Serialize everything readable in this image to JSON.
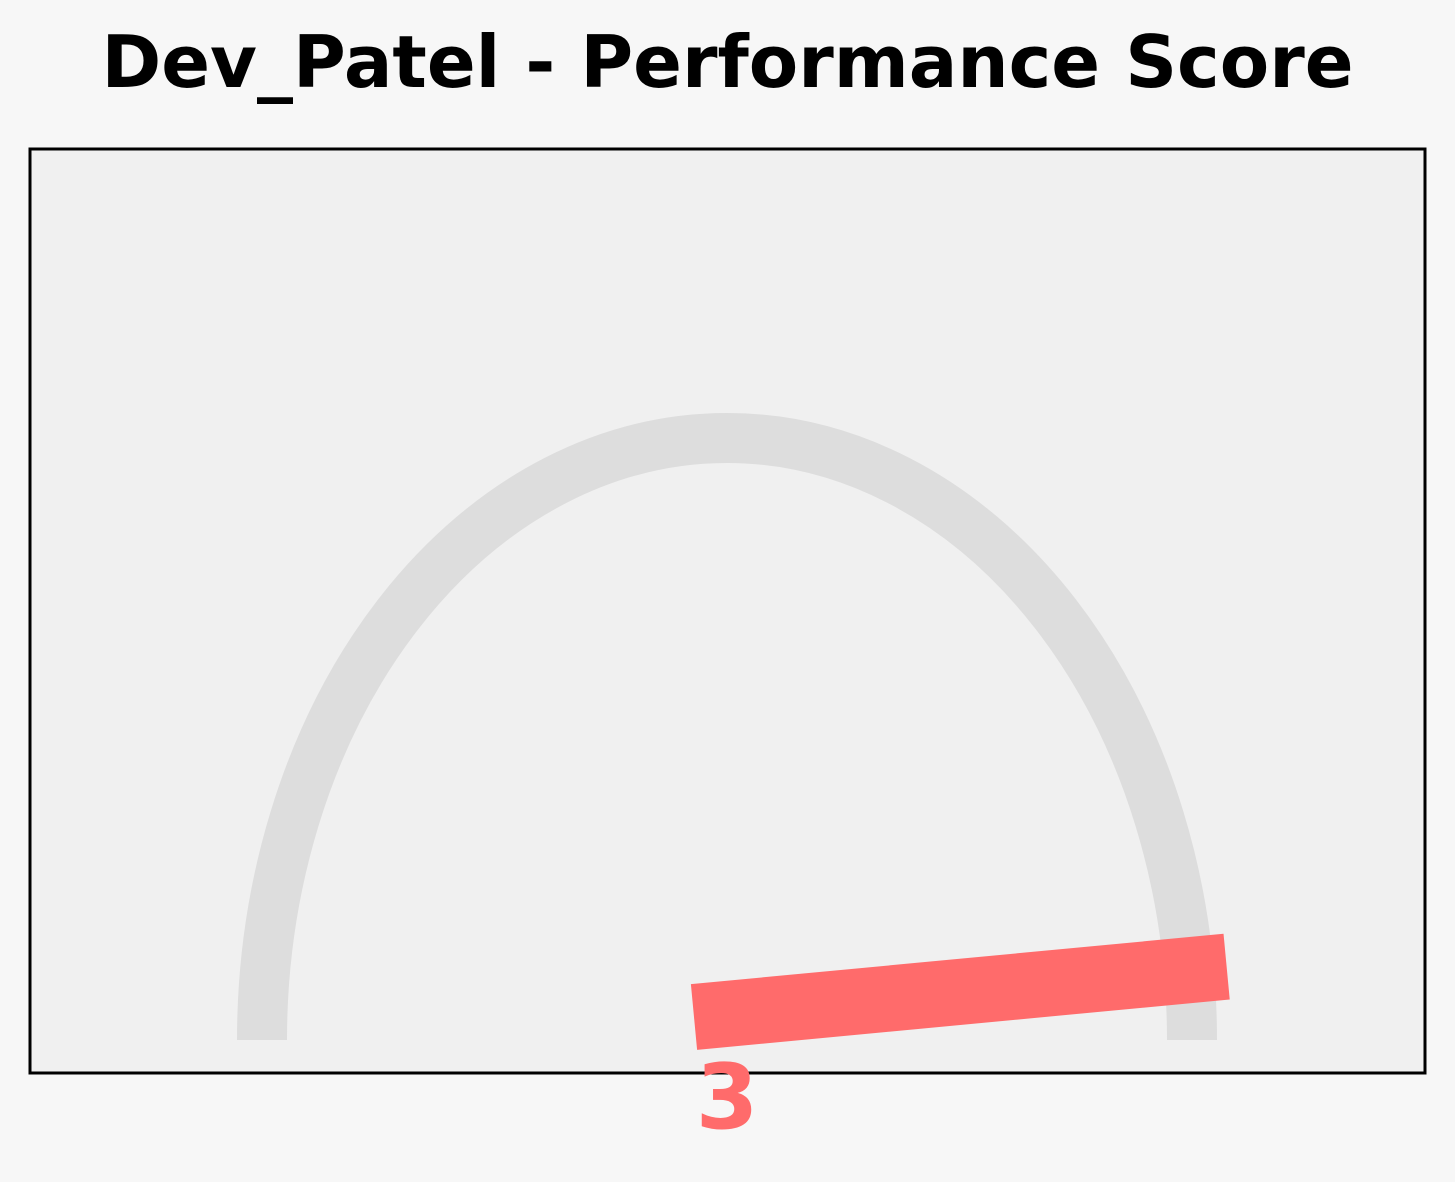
{
  "chart_data": {
    "type": "gauge",
    "title": "Dev_Patel - Performance Score",
    "value": 3,
    "value_label": "3",
    "range": [
      0,
      100
    ],
    "colors": {
      "page_background": "#f7f7f7",
      "plot_background": "#f0f0f0",
      "track": "#dddddd",
      "needle": "#ff6b6b",
      "value_text": "#ff6b6b",
      "frame": "#000000"
    }
  }
}
